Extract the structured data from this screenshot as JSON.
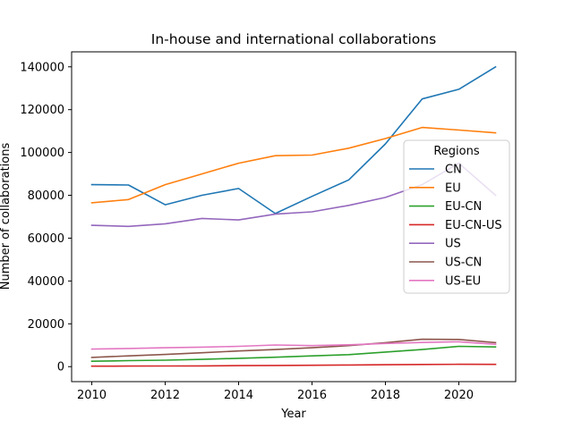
{
  "chart_data": {
    "type": "line",
    "title": "In-house and international collaborations",
    "xlabel": "Year",
    "ylabel": "Number of collaborations",
    "xlim": [
      2009.45,
      2021.55
    ],
    "ylim": [
      -7000,
      147000
    ],
    "x": [
      2010,
      2011,
      2012,
      2013,
      2014,
      2015,
      2016,
      2017,
      2018,
      2019,
      2020,
      2021
    ],
    "xticks": [
      2010,
      2012,
      2014,
      2016,
      2018,
      2020
    ],
    "yticks": [
      0,
      20000,
      40000,
      60000,
      80000,
      100000,
      120000,
      140000
    ],
    "grid": false,
    "legend": {
      "title": "Regions",
      "placement": "right"
    },
    "series": [
      {
        "name": "CN",
        "color": "#1f77b4",
        "values": [
          85000,
          84800,
          75600,
          80000,
          83200,
          71500,
          79500,
          87200,
          104000,
          125000,
          129500,
          140000
        ]
      },
      {
        "name": "EU",
        "color": "#ff7f0e",
        "values": [
          76500,
          78000,
          85000,
          90000,
          95000,
          98500,
          98800,
          102000,
          106500,
          111700,
          110500,
          109200
        ]
      },
      {
        "name": "EU-CN",
        "color": "#2ca02c",
        "values": [
          2500,
          2800,
          3000,
          3400,
          3900,
          4400,
          5000,
          5600,
          6800,
          8000,
          9500,
          9200
        ]
      },
      {
        "name": "EU-CN-US",
        "color": "#d62728",
        "values": [
          200,
          250,
          300,
          350,
          450,
          550,
          650,
          750,
          900,
          1000,
          1100,
          1050
        ]
      },
      {
        "name": "US",
        "color": "#9467bd",
        "values": [
          66000,
          65500,
          66700,
          69200,
          68500,
          71200,
          72300,
          75300,
          79000,
          85000,
          95000,
          80000
        ]
      },
      {
        "name": "US-CN",
        "color": "#8c564b",
        "values": [
          4300,
          5000,
          5700,
          6500,
          7300,
          8000,
          8800,
          9800,
          11200,
          12800,
          12700,
          11200
        ]
      },
      {
        "name": "US-EU",
        "color": "#e377c2",
        "values": [
          8200,
          8500,
          8800,
          9100,
          9500,
          10100,
          9800,
          10200,
          10800,
          11300,
          11600,
          10400
        ]
      }
    ]
  }
}
